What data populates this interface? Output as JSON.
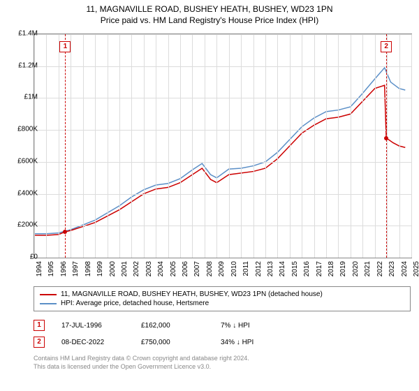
{
  "title": {
    "line1": "11, MAGNAVILLE ROAD, BUSHEY HEATH, BUSHEY, WD23 1PN",
    "line2": "Price paid vs. HM Land Registry's House Price Index (HPI)"
  },
  "chart": {
    "type": "line",
    "background_color": "#ffffff",
    "grid_color": "#dcdcdc",
    "border_color": "#888888",
    "y": {
      "min": 0,
      "max": 1400000,
      "ticks": [
        0,
        200000,
        400000,
        600000,
        800000,
        1000000,
        1200000,
        1400000
      ],
      "labels": [
        "£0",
        "£200K",
        "£400K",
        "£600K",
        "£800K",
        "£1M",
        "£1.2M",
        "£1.4M"
      ],
      "label_fontsize": 10
    },
    "x": {
      "min": 1994,
      "max": 2025,
      "ticks": [
        1994,
        1995,
        1996,
        1997,
        1998,
        1999,
        2000,
        2001,
        2002,
        2003,
        2004,
        2005,
        2006,
        2007,
        2008,
        2009,
        2010,
        2011,
        2012,
        2013,
        2014,
        2015,
        2016,
        2017,
        2018,
        2019,
        2020,
        2021,
        2022,
        2023,
        2024,
        2025
      ],
      "label_fontsize": 10,
      "label_rotation": -90
    },
    "series": [
      {
        "name": "property",
        "label": "11, MAGNAVILLE ROAD, BUSHEY HEATH, BUSHEY, WD23 1PN (detached house)",
        "color": "#cc0000",
        "line_width": 1.5,
        "points": [
          [
            1994.0,
            140000
          ],
          [
            1995.0,
            140000
          ],
          [
            1996.0,
            145000
          ],
          [
            1996.55,
            162000
          ],
          [
            1997.0,
            170000
          ],
          [
            1998.0,
            195000
          ],
          [
            1999.0,
            220000
          ],
          [
            2000.0,
            260000
          ],
          [
            2001.0,
            300000
          ],
          [
            2002.0,
            350000
          ],
          [
            2003.0,
            400000
          ],
          [
            2004.0,
            430000
          ],
          [
            2005.0,
            440000
          ],
          [
            2006.0,
            470000
          ],
          [
            2007.0,
            520000
          ],
          [
            2007.8,
            560000
          ],
          [
            2008.5,
            490000
          ],
          [
            2009.0,
            470000
          ],
          [
            2010.0,
            520000
          ],
          [
            2011.0,
            530000
          ],
          [
            2012.0,
            540000
          ],
          [
            2013.0,
            560000
          ],
          [
            2014.0,
            620000
          ],
          [
            2015.0,
            700000
          ],
          [
            2016.0,
            780000
          ],
          [
            2017.0,
            830000
          ],
          [
            2018.0,
            870000
          ],
          [
            2019.0,
            880000
          ],
          [
            2020.0,
            900000
          ],
          [
            2021.0,
            980000
          ],
          [
            2022.0,
            1060000
          ],
          [
            2022.8,
            1080000
          ],
          [
            2022.94,
            750000
          ],
          [
            2023.5,
            720000
          ],
          [
            2024.0,
            700000
          ],
          [
            2024.5,
            690000
          ]
        ]
      },
      {
        "name": "hpi",
        "label": "HPI: Average price, detached house, Hertsmere",
        "color": "#5b8fc7",
        "line_width": 1.5,
        "points": [
          [
            1994.0,
            150000
          ],
          [
            1995.0,
            150000
          ],
          [
            1996.0,
            155000
          ],
          [
            1997.0,
            175000
          ],
          [
            1998.0,
            205000
          ],
          [
            1999.0,
            235000
          ],
          [
            2000.0,
            280000
          ],
          [
            2001.0,
            325000
          ],
          [
            2002.0,
            380000
          ],
          [
            2003.0,
            425000
          ],
          [
            2004.0,
            455000
          ],
          [
            2005.0,
            465000
          ],
          [
            2006.0,
            495000
          ],
          [
            2007.0,
            550000
          ],
          [
            2007.8,
            590000
          ],
          [
            2008.5,
            520000
          ],
          [
            2009.0,
            500000
          ],
          [
            2010.0,
            555000
          ],
          [
            2011.0,
            560000
          ],
          [
            2012.0,
            575000
          ],
          [
            2013.0,
            600000
          ],
          [
            2014.0,
            660000
          ],
          [
            2015.0,
            740000
          ],
          [
            2016.0,
            820000
          ],
          [
            2017.0,
            875000
          ],
          [
            2018.0,
            915000
          ],
          [
            2019.0,
            925000
          ],
          [
            2020.0,
            945000
          ],
          [
            2021.0,
            1030000
          ],
          [
            2022.0,
            1120000
          ],
          [
            2022.8,
            1190000
          ],
          [
            2023.3,
            1100000
          ],
          [
            2024.0,
            1060000
          ],
          [
            2024.5,
            1050000
          ]
        ]
      }
    ],
    "markers": [
      {
        "id": "1",
        "x": 1996.55,
        "y": 162000,
        "box_y_offset": -24
      },
      {
        "id": "2",
        "x": 2022.94,
        "y": 750000,
        "box_y_offset": -24
      }
    ],
    "marker_color": "#cc0000",
    "sale_dot_color": "#cc0000"
  },
  "legend": {
    "items": [
      {
        "color": "#cc0000",
        "label": "11, MAGNAVILLE ROAD, BUSHEY HEATH, BUSHEY, WD23 1PN (detached house)"
      },
      {
        "color": "#5b8fc7",
        "label": "HPI: Average price, detached house, Hertsmere"
      }
    ]
  },
  "sales": [
    {
      "id": "1",
      "date": "17-JUL-1996",
      "price": "£162,000",
      "diff": "7%",
      "arrow": "↓",
      "cmp": "HPI"
    },
    {
      "id": "2",
      "date": "08-DEC-2022",
      "price": "£750,000",
      "diff": "34%",
      "arrow": "↓",
      "cmp": "HPI"
    }
  ],
  "footer": {
    "line1": "Contains HM Land Registry data © Crown copyright and database right 2024.",
    "line2": "This data is licensed under the Open Government Licence v3.0."
  }
}
